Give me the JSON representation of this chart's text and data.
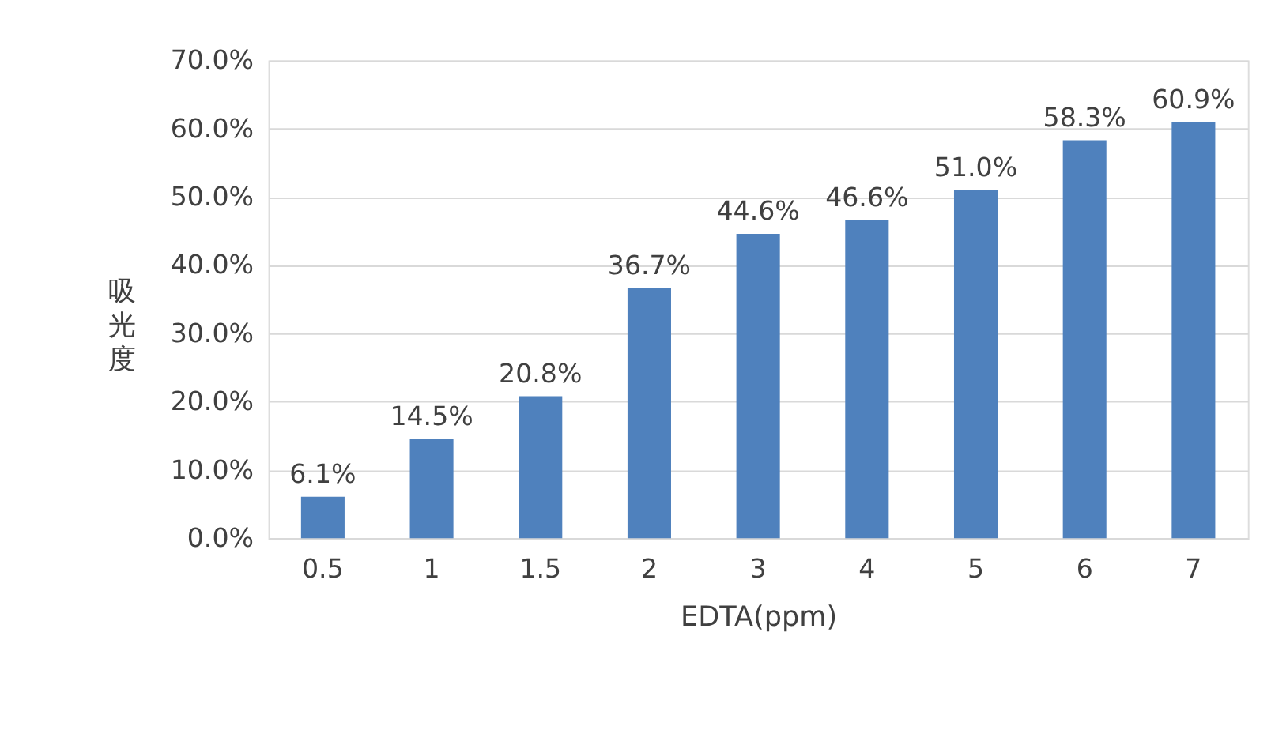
{
  "chart_data": {
    "type": "bar",
    "xlabel": "EDTA(ppm)",
    "ylabel": "吸光度",
    "categories": [
      "0.5",
      "1",
      "1.5",
      "2",
      "3",
      "4",
      "5",
      "6",
      "7"
    ],
    "values": [
      6.1,
      14.5,
      20.8,
      36.7,
      44.6,
      46.6,
      51.0,
      58.3,
      60.9
    ],
    "value_labels": [
      "6.1%",
      "14.5%",
      "20.8%",
      "36.7%",
      "44.6%",
      "46.6%",
      "51.0%",
      "58.3%",
      "60.9%"
    ],
    "color": "#4f81bd",
    "ylim": [
      0,
      70
    ],
    "yticks": [
      {
        "value": 0,
        "label": "0.0%"
      },
      {
        "value": 10,
        "label": "10.0%"
      },
      {
        "value": 20,
        "label": "20.0%"
      },
      {
        "value": 30,
        "label": "30.0%"
      },
      {
        "value": 40,
        "label": "40.0%"
      },
      {
        "value": 50,
        "label": "50.0%"
      },
      {
        "value": 60,
        "label": "60.0%"
      },
      {
        "value": 70,
        "label": "70.0%"
      }
    ],
    "grid": "y"
  }
}
